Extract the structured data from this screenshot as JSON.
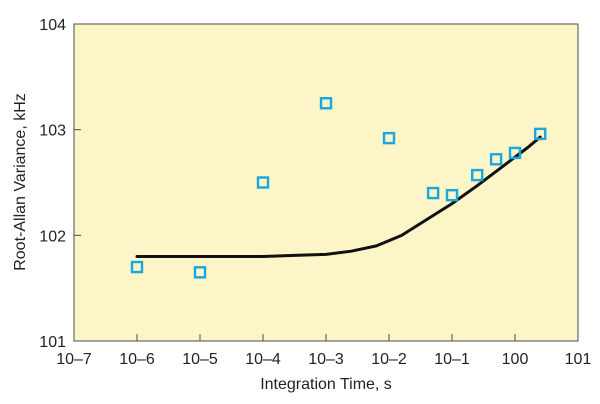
{
  "chart_data": {
    "type": "scatter",
    "title": "",
    "xlabel": "Integration Time, s",
    "ylabel": "Root-Allan Variance, kHz",
    "x_scale": "log10",
    "y_scale": "log10",
    "xlim_exponent": [
      -7,
      1
    ],
    "ylim_exponent": [
      1,
      4
    ],
    "x_ticks": [
      {
        "label": "10–7",
        "exp": -7
      },
      {
        "label": "10–6",
        "exp": -6
      },
      {
        "label": "10–5",
        "exp": -5
      },
      {
        "label": "10–4",
        "exp": -4
      },
      {
        "label": "10–3",
        "exp": -3
      },
      {
        "label": "10–2",
        "exp": -2
      },
      {
        "label": "10–1",
        "exp": -1
      },
      {
        "label": "100",
        "exp": 0
      },
      {
        "label": "101",
        "exp": 1
      }
    ],
    "y_ticks": [
      {
        "label": "101",
        "exp": 1
      },
      {
        "label": "102",
        "exp": 2
      },
      {
        "label": "103",
        "exp": 3
      },
      {
        "label": "104",
        "exp": 4
      }
    ],
    "grid": false,
    "legend": "none",
    "series": [
      {
        "kind": "markers",
        "marker": "square",
        "color": "#1aa7e0",
        "points": [
          {
            "x_exp": -6.0,
            "y_exp": 1.7
          },
          {
            "x_exp": -5.0,
            "y_exp": 1.65
          },
          {
            "x_exp": -4.0,
            "y_exp": 2.5
          },
          {
            "x_exp": -3.0,
            "y_exp": 3.25
          },
          {
            "x_exp": -2.0,
            "y_exp": 2.92
          },
          {
            "x_exp": -1.3,
            "y_exp": 2.4
          },
          {
            "x_exp": -1.0,
            "y_exp": 2.38
          },
          {
            "x_exp": -0.6,
            "y_exp": 2.57
          },
          {
            "x_exp": -0.3,
            "y_exp": 2.72
          },
          {
            "x_exp": 0.0,
            "y_exp": 2.78
          },
          {
            "x_exp": 0.4,
            "y_exp": 2.96
          }
        ]
      },
      {
        "kind": "line",
        "color": "#111111",
        "points": [
          {
            "x_exp": -6.0,
            "y_exp": 1.8
          },
          {
            "x_exp": -5.0,
            "y_exp": 1.8
          },
          {
            "x_exp": -4.0,
            "y_exp": 1.8
          },
          {
            "x_exp": -3.5,
            "y_exp": 1.81
          },
          {
            "x_exp": -3.0,
            "y_exp": 1.82
          },
          {
            "x_exp": -2.6,
            "y_exp": 1.85
          },
          {
            "x_exp": -2.2,
            "y_exp": 1.9
          },
          {
            "x_exp": -1.8,
            "y_exp": 2.0
          },
          {
            "x_exp": -1.4,
            "y_exp": 2.15
          },
          {
            "x_exp": -1.0,
            "y_exp": 2.3
          },
          {
            "x_exp": -0.6,
            "y_exp": 2.47
          },
          {
            "x_exp": -0.2,
            "y_exp": 2.65
          },
          {
            "x_exp": 0.2,
            "y_exp": 2.83
          },
          {
            "x_exp": 0.4,
            "y_exp": 2.93
          }
        ]
      }
    ]
  }
}
